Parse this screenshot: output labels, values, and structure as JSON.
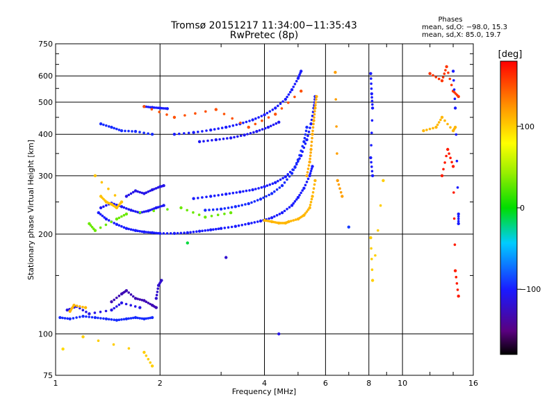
{
  "chart_data": {
    "type": "scatter",
    "title": "Tromsø 20151217 11:34:00−11:35:43",
    "subtitle": "RwPretec (8p)",
    "xlabel": "Frequency [MHz]",
    "ylabel": "Stationary phase Virtual Height [km]",
    "x_scale": "log",
    "y_scale": "log",
    "xlim": [
      1,
      16
    ],
    "ylim": [
      75,
      750
    ],
    "x_ticks": [
      1,
      2,
      4,
      6,
      8,
      10,
      16
    ],
    "x_tick_labels": [
      "1",
      "2",
      "4",
      "6",
      "8",
      "10",
      "16"
    ],
    "y_ticks": [
      75,
      100,
      200,
      300,
      400,
      500,
      600,
      750
    ],
    "y_tick_labels": [
      "75",
      "100",
      "200",
      "300",
      "400",
      "500",
      "600",
      "750"
    ],
    "grid": true,
    "phase_stats": {
      "title": "Phases",
      "line1": "mean, sd,O: −98.0, 15.3",
      "line2": "mean, sd,X:  85.0, 19.7"
    },
    "colorbar": {
      "label": "[deg]",
      "min": -180,
      "max": 180,
      "ticks": [
        100,
        0,
        -100
      ],
      "tick_labels": [
        "100",
        "0",
        "−100"
      ]
    },
    "series": [
      {
        "values_are": "phase_deg",
        "traces": [
          {
            "x": [
              1.03,
              1.1,
              1.2,
              1.3,
              1.4,
              1.5,
              1.6,
              1.7,
              1.8,
              1.9
            ],
            "y": [
              112,
              111,
              113,
              112,
              111,
              110,
              111,
              112,
              111,
              112
            ],
            "phase": -95
          },
          {
            "x": [
              1.08,
              1.15,
              1.25,
              1.45,
              1.55,
              1.75
            ],
            "y": [
              118,
              121,
              115,
              118,
              124,
              120
            ],
            "phase": -110
          },
          {
            "x": [
              1.1,
              1.13,
              1.22
            ],
            "y": [
              117,
              122,
              120
            ],
            "phase": 110
          },
          {
            "x": [
              1.45,
              1.55,
              1.6,
              1.7,
              1.8,
              1.9,
              1.95
            ],
            "y": [
              125,
              132,
              135,
              128,
              126,
              122,
              120
            ],
            "phase": -130
          },
          {
            "x": [
              1.95,
              1.98,
              2.02
            ],
            "y": [
              128,
              140,
              145
            ],
            "phase": -120
          },
          {
            "x": [
              1.33,
              1.4,
              1.5,
              1.6,
              1.7,
              1.8,
              1.9,
              2.0,
              2.2,
              2.4,
              2.6,
              2.8,
              3.0,
              3.3,
              3.6,
              3.9,
              4.2,
              4.5,
              4.8,
              5.0,
              5.2,
              5.4,
              5.5
            ],
            "y": [
              232,
              222,
              214,
              208,
              205,
              203,
              202,
              201,
              201,
              202,
              204,
              206,
              208,
              211,
              215,
              219,
              224,
              232,
              244,
              258,
              275,
              300,
              320
            ],
            "phase": -100
          },
          {
            "x": [
              1.35,
              1.45,
              1.55,
              1.65,
              1.75,
              1.85,
              1.95,
              2.05
            ],
            "y": [
              240,
              248,
              242,
              236,
              232,
              235,
              240,
              244
            ],
            "phase": -105
          },
          {
            "x": [
              1.6,
              1.7,
              1.8,
              1.9,
              2.0,
              2.05
            ],
            "y": [
              260,
              270,
              265,
              272,
              278,
              280
            ],
            "phase": -110
          },
          {
            "x": [
              2.5,
              2.8,
              3.1,
              3.4,
              3.7,
              4.0,
              4.3,
              4.6,
              4.9,
              5.1,
              5.3,
              5.45,
              5.55,
              5.6
            ],
            "y": [
              256,
              260,
              264,
              268,
              272,
              278,
              286,
              298,
              318,
              345,
              385,
              430,
              480,
              520
            ],
            "phase": -100
          },
          {
            "x": [
              2.7,
              3.0,
              3.3,
              3.6,
              3.9,
              4.2,
              4.5,
              4.8,
              5.0,
              5.2,
              5.3
            ],
            "y": [
              236,
              238,
              242,
              247,
              255,
              265,
              280,
              305,
              335,
              380,
              420
            ],
            "phase": -95
          },
          {
            "x": [
              2.2,
              2.5,
              2.8,
              3.1,
              3.4,
              3.7,
              4.0,
              4.3,
              4.6,
              4.8,
              5.0,
              5.1
            ],
            "y": [
              400,
              405,
              412,
              420,
              430,
              442,
              458,
              480,
              510,
              545,
              590,
              620
            ],
            "phase": -100
          },
          {
            "x": [
              2.6,
              2.9,
              3.2,
              3.5,
              3.8,
              4.1,
              4.4
            ],
            "y": [
              380,
              385,
              390,
              398,
              408,
              420,
              435
            ],
            "phase": -105
          },
          {
            "x": [
              1.8,
              1.9,
              2.0,
              2.1
            ],
            "y": [
              485,
              482,
              480,
              478
            ],
            "phase": -100
          },
          {
            "x": [
              1.35,
              1.45,
              1.55,
              1.7,
              1.9
            ],
            "y": [
              430,
              420,
              410,
              408,
              400
            ],
            "phase": -95
          },
          {
            "x": [
              4.0,
              4.2,
              4.4,
              4.6,
              4.7,
              5.0,
              5.2,
              5.4,
              5.5,
              5.6
            ],
            "y": [
              220,
              218,
              216,
              216,
              218,
              222,
              228,
              240,
              260,
              290
            ],
            "phase": 110
          },
          {
            "x": [
              5.3,
              5.4,
              5.45,
              5.5,
              5.55,
              5.6,
              5.65
            ],
            "y": [
              300,
              330,
              360,
              400,
              440,
              480,
              520
            ],
            "phase": 115
          },
          {
            "x": [
              1.35,
              1.4,
              1.45,
              1.5,
              1.55,
              1.3
            ],
            "y": [
              260,
              250,
              246,
              240,
              250,
              300
            ],
            "phase": 105
          },
          {
            "x": [
              1.25,
              1.3,
              1.5,
              1.6,
              2.3,
              2.7,
              3.2
            ],
            "y": [
              215,
              205,
              222,
              230,
              240,
              225,
              232
            ],
            "phase": 30
          },
          {
            "x": [
              1.8,
              2.2,
              2.9,
              3.6,
              4.3,
              5.1
            ],
            "y": [
              485,
              450,
              475,
              420,
              460,
              540
            ],
            "phase": 150
          },
          {
            "x": [
              3.1
            ],
            "y": [
              170
            ],
            "phase": -120
          },
          {
            "x": [
              2.4
            ],
            "y": [
              188
            ],
            "phase": -10
          },
          {
            "x": [
              1.2,
              1.8,
              1.9
            ],
            "y": [
              98,
              88,
              80
            ],
            "phase": 100
          },
          {
            "x": [
              1.05
            ],
            "y": [
              90
            ],
            "phase": 95
          },
          {
            "x": [
              6.4,
              6.5,
              6.7
            ],
            "y": [
              615,
              290,
              260
            ],
            "phase": 120
          },
          {
            "x": [
              8.1,
              8.15,
              8.2,
              8.1,
              8.2
            ],
            "y": [
              610,
              530,
              480,
              340,
              300
            ],
            "phase": -100
          },
          {
            "x": [
              8.1,
              8.2,
              8.8
            ],
            "y": [
              195,
              145,
              290
            ],
            "phase": 100
          },
          {
            "x": [
              11.5,
              12.5,
              13.0,
              14.0,
              14.2
            ],
            "y": [
              410,
              420,
              450,
              410,
              420
            ],
            "phase": 110
          },
          {
            "x": [
              12.0,
              13.0,
              13.4,
              14.0,
              14.5
            ],
            "y": [
              610,
              580,
              640,
              540,
              520
            ],
            "phase": 160
          },
          {
            "x": [
              13.0,
              13.5,
              14.0,
              14.2,
              14.5
            ],
            "y": [
              300,
              360,
              320,
              155,
              130
            ],
            "phase": 170
          },
          {
            "x": [
              14.0,
              14.2,
              14.5,
              14.5
            ],
            "y": [
              620,
              480,
              230,
              215
            ],
            "phase": -100
          },
          {
            "x": [
              7.0
            ],
            "y": [
              210
            ],
            "phase": -90
          },
          {
            "x": [
              4.4
            ],
            "y": [
              100
            ],
            "phase": -110
          }
        ]
      }
    ]
  }
}
